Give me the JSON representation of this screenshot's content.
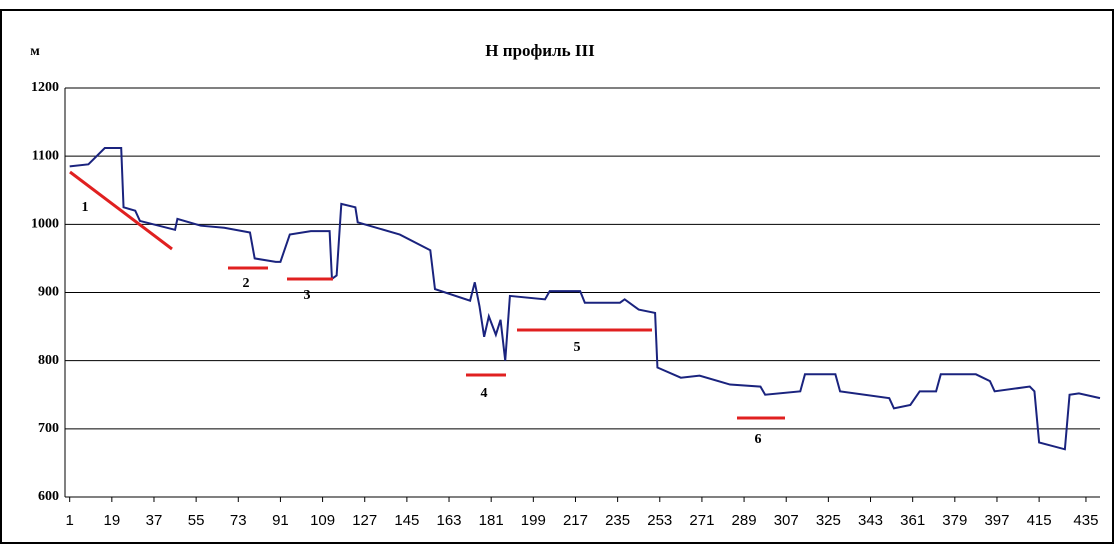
{
  "chart_data": {
    "type": "line",
    "title": "H профиль III",
    "y_label": "м",
    "x": [
      1,
      9,
      16,
      23,
      24,
      29,
      31,
      46,
      47,
      57,
      67,
      78,
      80,
      89,
      91,
      95,
      104,
      112,
      113,
      115,
      117,
      123,
      124,
      142,
      155,
      157,
      172,
      174,
      176,
      178,
      180,
      183,
      185,
      187,
      189,
      204,
      206,
      219,
      221,
      236,
      238,
      244,
      251,
      252,
      262,
      270,
      283,
      296,
      298,
      313,
      315,
      328,
      330,
      351,
      353,
      360,
      364,
      371,
      373,
      388,
      394,
      396,
      411,
      413,
      415,
      426,
      428,
      432,
      441
    ],
    "series": [
      {
        "name": "H",
        "color": "#1a237e",
        "values": [
          1085,
          1088,
          1112,
          1112,
          1025,
          1020,
          1005,
          992,
          1008,
          998,
          995,
          988,
          950,
          945,
          945,
          985,
          990,
          990,
          920,
          925,
          1030,
          1025,
          1003,
          985,
          962,
          905,
          888,
          915,
          880,
          835,
          865,
          838,
          860,
          800,
          895,
          890,
          902,
          902,
          885,
          885,
          890,
          875,
          870,
          790,
          775,
          778,
          765,
          762,
          750,
          755,
          780,
          780,
          755,
          745,
          730,
          735,
          755,
          755,
          780,
          780,
          770,
          755,
          762,
          755,
          680,
          670,
          750,
          752,
          745
        ]
      }
    ],
    "xlim": [
      -1,
      441
    ],
    "xticks": [
      1,
      19,
      37,
      55,
      73,
      91,
      109,
      127,
      145,
      163,
      181,
      199,
      217,
      235,
      253,
      271,
      289,
      307,
      325,
      343,
      361,
      379,
      397,
      415,
      435
    ],
    "ylim": [
      600,
      1200
    ],
    "yticks": [
      600,
      700,
      800,
      900,
      1000,
      1100,
      1200
    ],
    "grid": true,
    "annotations": [
      {
        "label": "1",
        "color": "#e02020"
      },
      {
        "label": "2",
        "color": "#e02020"
      },
      {
        "label": "3",
        "color": "#e02020"
      },
      {
        "label": "4",
        "color": "#e02020"
      },
      {
        "label": "5",
        "color": "#e02020"
      },
      {
        "label": "6",
        "color": "#e02020"
      }
    ]
  }
}
